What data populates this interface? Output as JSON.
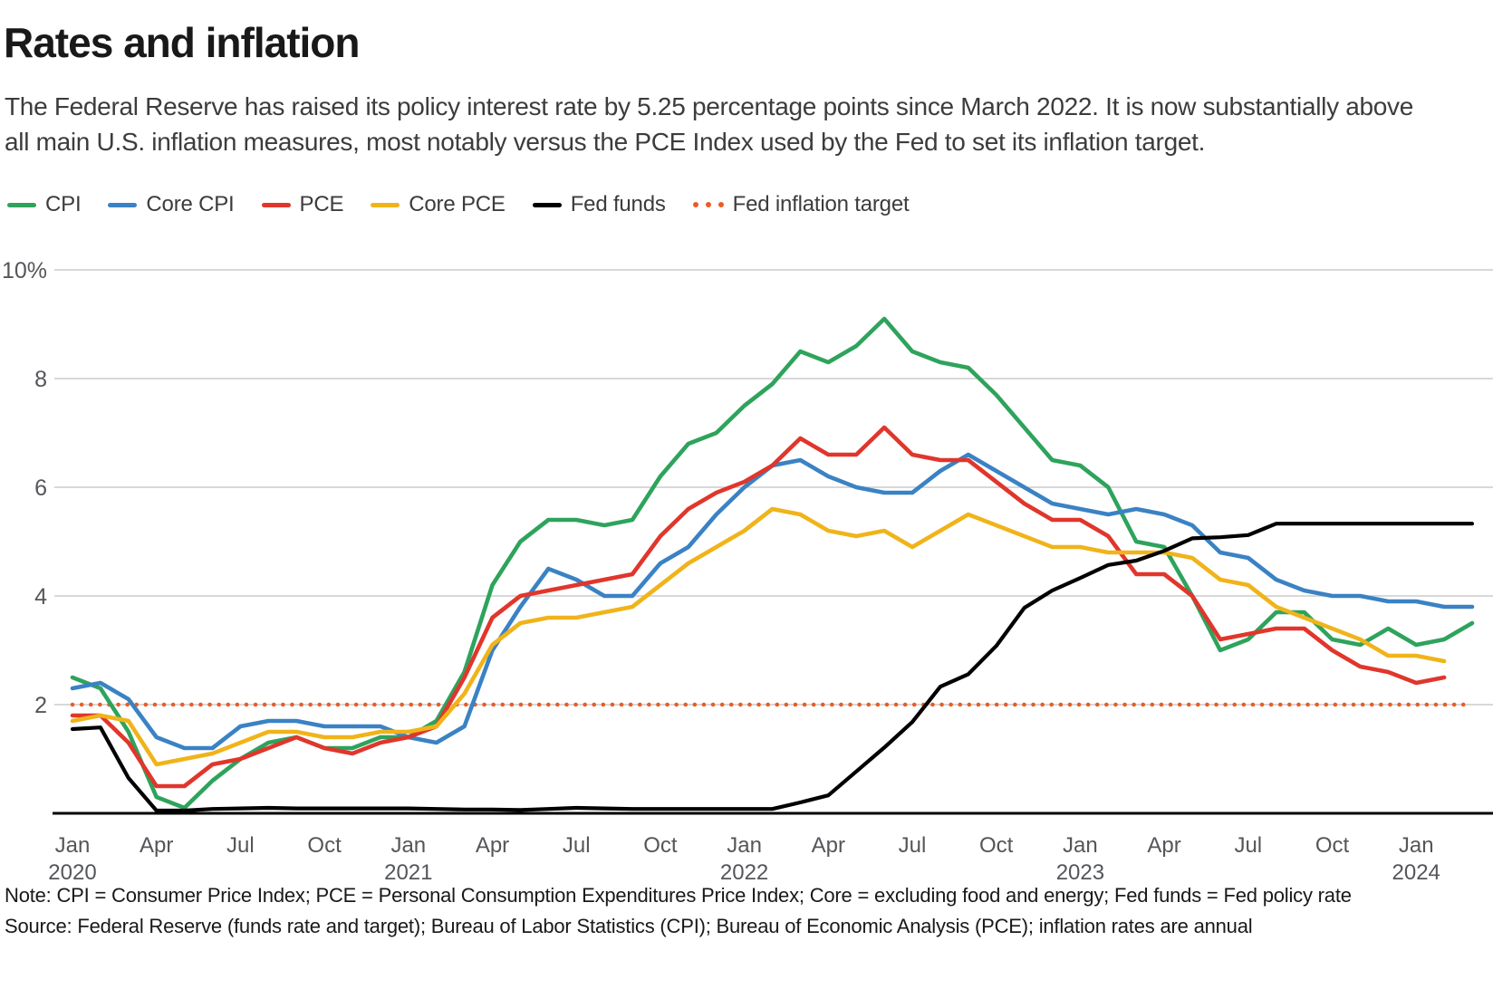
{
  "header": {
    "title": "Rates and inflation",
    "subtitle_line1": "The Federal Reserve has raised its policy interest rate by 5.25 percentage points since March 2022. It is now substantially above",
    "subtitle_line2": "all main U.S. inflation measures, most notably versus the PCE Index used by the Fed to set its inflation target."
  },
  "chart_data": {
    "type": "line",
    "title": "Rates and inflation",
    "grid": true,
    "legend_position": "top",
    "background": "#ffffff",
    "gridline_color": "#cbcbcb",
    "axis_text_color": "#54565a",
    "y_axis": {
      "min": 0,
      "max": 10,
      "ticks": [
        {
          "value": 2,
          "label": "2"
        },
        {
          "value": 4,
          "label": "4"
        },
        {
          "value": 6,
          "label": "6"
        },
        {
          "value": 8,
          "label": "8"
        },
        {
          "value": 10,
          "label": "10%"
        }
      ]
    },
    "x_axis": {
      "unit": "month",
      "start": "Jan 2020",
      "end": "Mar 2024",
      "ticks": [
        {
          "month_index": 0,
          "label": "Jan",
          "year": "2020"
        },
        {
          "month_index": 3,
          "label": "Apr"
        },
        {
          "month_index": 6,
          "label": "Jul"
        },
        {
          "month_index": 9,
          "label": "Oct"
        },
        {
          "month_index": 12,
          "label": "Jan",
          "year": "2021"
        },
        {
          "month_index": 15,
          "label": "Apr"
        },
        {
          "month_index": 18,
          "label": "Jul"
        },
        {
          "month_index": 21,
          "label": "Oct"
        },
        {
          "month_index": 24,
          "label": "Jan",
          "year": "2022"
        },
        {
          "month_index": 27,
          "label": "Apr"
        },
        {
          "month_index": 30,
          "label": "Jul"
        },
        {
          "month_index": 33,
          "label": "Oct"
        },
        {
          "month_index": 36,
          "label": "Jan",
          "year": "2023"
        },
        {
          "month_index": 39,
          "label": "Apr"
        },
        {
          "month_index": 42,
          "label": "Jul"
        },
        {
          "month_index": 45,
          "label": "Oct"
        },
        {
          "month_index": 48,
          "label": "Jan",
          "year": "2024"
        }
      ]
    },
    "target_line": {
      "name": "Fed inflation target",
      "value": 2,
      "color": "#ee5a24",
      "style": "dotted"
    },
    "series": [
      {
        "name": "CPI",
        "color": "#2ea35c",
        "style": "solid",
        "values": [
          2.5,
          2.3,
          1.5,
          0.3,
          0.1,
          0.6,
          1.0,
          1.3,
          1.4,
          1.2,
          1.2,
          1.4,
          1.4,
          1.7,
          2.6,
          4.2,
          5.0,
          5.4,
          5.4,
          5.3,
          5.4,
          6.2,
          6.8,
          7.0,
          7.5,
          7.9,
          8.5,
          8.3,
          8.6,
          9.1,
          8.5,
          8.3,
          8.2,
          7.7,
          7.1,
          6.5,
          6.4,
          6.0,
          5.0,
          4.9,
          4.0,
          3.0,
          3.2,
          3.7,
          3.7,
          3.2,
          3.1,
          3.4,
          3.1,
          3.2,
          3.5
        ]
      },
      {
        "name": "Core CPI",
        "color": "#3a82c4",
        "style": "solid",
        "values": [
          2.3,
          2.4,
          2.1,
          1.4,
          1.2,
          1.2,
          1.6,
          1.7,
          1.7,
          1.6,
          1.6,
          1.6,
          1.4,
          1.3,
          1.6,
          3.0,
          3.8,
          4.5,
          4.3,
          4.0,
          4.0,
          4.6,
          4.9,
          5.5,
          6.0,
          6.4,
          6.5,
          6.2,
          6.0,
          5.9,
          5.9,
          6.3,
          6.6,
          6.3,
          6.0,
          5.7,
          5.6,
          5.5,
          5.6,
          5.5,
          5.3,
          4.8,
          4.7,
          4.3,
          4.1,
          4.0,
          4.0,
          3.9,
          3.9,
          3.8,
          3.8
        ]
      },
      {
        "name": "PCE",
        "color": "#e0362c",
        "style": "solid",
        "values": [
          1.8,
          1.8,
          1.3,
          0.5,
          0.5,
          0.9,
          1.0,
          1.2,
          1.4,
          1.2,
          1.1,
          1.3,
          1.4,
          1.6,
          2.5,
          3.6,
          4.0,
          4.1,
          4.2,
          4.3,
          4.4,
          5.1,
          5.6,
          5.9,
          6.1,
          6.4,
          6.9,
          6.6,
          6.6,
          7.1,
          6.6,
          6.5,
          6.5,
          6.1,
          5.7,
          5.4,
          5.4,
          5.1,
          4.4,
          4.4,
          4.0,
          3.2,
          3.3,
          3.4,
          3.4,
          3.0,
          2.7,
          2.6,
          2.4,
          2.5,
          null
        ]
      },
      {
        "name": "Core PCE",
        "color": "#f0b41a",
        "style": "solid",
        "values": [
          1.7,
          1.8,
          1.7,
          0.9,
          1.0,
          1.1,
          1.3,
          1.5,
          1.5,
          1.4,
          1.4,
          1.5,
          1.5,
          1.6,
          2.2,
          3.1,
          3.5,
          3.6,
          3.6,
          3.7,
          3.8,
          4.2,
          4.6,
          4.9,
          5.2,
          5.6,
          5.5,
          5.2,
          5.1,
          5.2,
          4.9,
          5.2,
          5.5,
          5.3,
          5.1,
          4.9,
          4.9,
          4.8,
          4.8,
          4.8,
          4.7,
          4.3,
          4.2,
          3.8,
          3.6,
          3.4,
          3.2,
          2.9,
          2.9,
          2.8,
          null
        ]
      },
      {
        "name": "Fed funds",
        "color": "#000000",
        "style": "solid",
        "values": [
          1.55,
          1.58,
          0.65,
          0.05,
          0.05,
          0.08,
          0.09,
          0.1,
          0.09,
          0.09,
          0.09,
          0.09,
          0.09,
          0.08,
          0.07,
          0.07,
          0.06,
          0.08,
          0.1,
          0.09,
          0.08,
          0.08,
          0.08,
          0.08,
          0.08,
          0.08,
          0.2,
          0.33,
          0.77,
          1.21,
          1.68,
          2.33,
          2.56,
          3.08,
          3.78,
          4.1,
          4.33,
          4.57,
          4.65,
          4.83,
          5.06,
          5.08,
          5.12,
          5.33,
          5.33,
          5.33,
          5.33,
          5.33,
          5.33,
          5.33,
          5.33
        ]
      }
    ]
  },
  "notes": {
    "note": "Note: CPI = Consumer Price Index; PCE = Personal Consumption Expenditures Price Index; Core = excluding food and energy; Fed funds = Fed policy rate",
    "source": "Source: Federal Reserve (funds rate and target); Bureau of Labor Statistics (CPI); Bureau of Economic Analysis (PCE); inflation rates are annual"
  }
}
